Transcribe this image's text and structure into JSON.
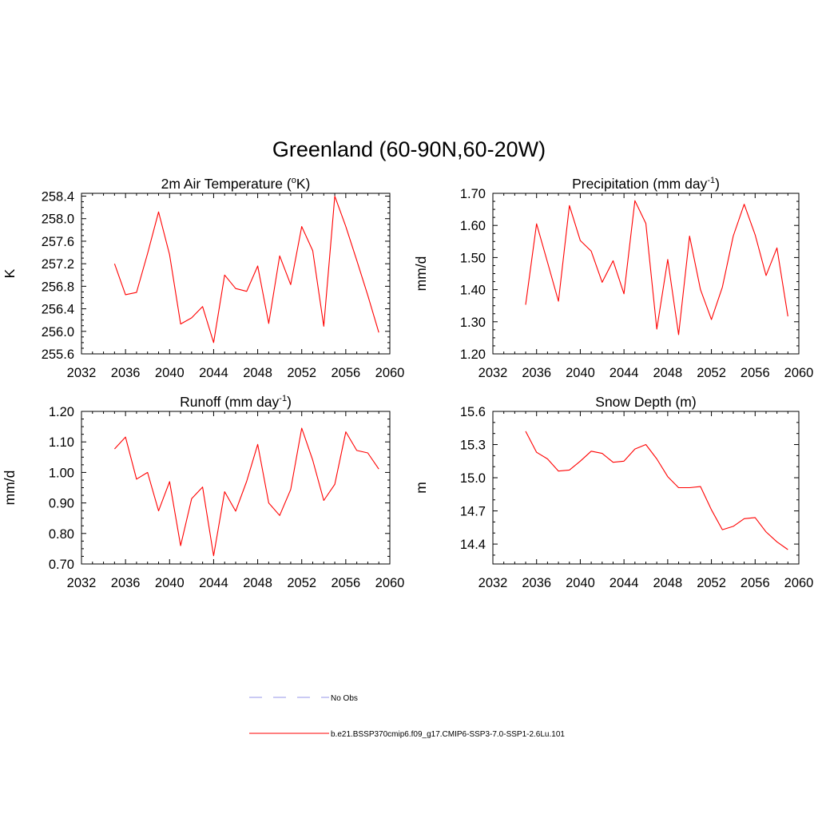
{
  "figure": {
    "title": "Greenland (60-90N,60-20W)"
  },
  "legend": {
    "entries": [
      {
        "label": "No Obs",
        "style": "dashed",
        "color": "#aaaaee"
      },
      {
        "label": "b.e21.BSSP370cmip6.f09_g17.CMIP6-SSP3-7.0-SSP1-2.6Lu.101",
        "style": "solid",
        "color": "#ff0000"
      }
    ]
  },
  "chart_data": [
    {
      "type": "line",
      "title": "2m Air Temperature (°K)",
      "title_base": "2m Air Temperature (",
      "title_sup": "o",
      "title_tail": "K)",
      "ylabel": "K",
      "xlim": [
        2032,
        2060
      ],
      "ylim": [
        255.6,
        258.45
      ],
      "xticks": [
        2032,
        2036,
        2040,
        2044,
        2048,
        2052,
        2056,
        2060
      ],
      "yticks": [
        255.6,
        256.0,
        256.4,
        256.8,
        257.2,
        257.6,
        258.0,
        258.4
      ],
      "ytick_labels": [
        "255.6",
        "256.0",
        "256.4",
        "256.8",
        "257.2",
        "257.6",
        "258.0",
        "258.4"
      ],
      "series": [
        {
          "color": "#ff0000",
          "x": [
            2035,
            2036,
            2037,
            2038,
            2039,
            2040,
            2041,
            2042,
            2043,
            2044,
            2045,
            2046,
            2047,
            2048,
            2049,
            2050,
            2051,
            2052,
            2053,
            2054,
            2055,
            2056,
            2057,
            2058,
            2059
          ],
          "y": [
            257.2,
            256.65,
            256.69,
            257.38,
            258.12,
            257.36,
            256.13,
            256.24,
            256.44,
            255.8,
            257.0,
            256.76,
            256.71,
            257.16,
            256.14,
            257.34,
            256.83,
            257.86,
            257.43,
            256.09,
            258.4,
            257.86,
            257.26,
            256.64,
            255.98
          ]
        }
      ]
    },
    {
      "type": "line",
      "title": "Precipitation (mm day-1)",
      "title_base": "Precipitation (mm day",
      "title_sup": "-1",
      "title_tail": ")",
      "ylabel": "mm/d",
      "xlim": [
        2032,
        2060
      ],
      "ylim": [
        1.2,
        1.7
      ],
      "xticks": [
        2032,
        2036,
        2040,
        2044,
        2048,
        2052,
        2056,
        2060
      ],
      "yticks": [
        1.2,
        1.3,
        1.4,
        1.5,
        1.6,
        1.7
      ],
      "ytick_labels": [
        "1.20",
        "1.30",
        "1.40",
        "1.50",
        "1.60",
        "1.70"
      ],
      "series": [
        {
          "color": "#ff0000",
          "x": [
            2035,
            2036,
            2037,
            2038,
            2039,
            2040,
            2041,
            2042,
            2043,
            2044,
            2045,
            2046,
            2047,
            2048,
            2049,
            2050,
            2051,
            2052,
            2053,
            2054,
            2055,
            2056,
            2057,
            2058,
            2059
          ],
          "y": [
            1.353,
            1.605,
            1.485,
            1.364,
            1.662,
            1.553,
            1.52,
            1.423,
            1.49,
            1.387,
            1.677,
            1.606,
            1.277,
            1.494,
            1.26,
            1.567,
            1.4,
            1.307,
            1.408,
            1.567,
            1.666,
            1.571,
            1.444,
            1.53,
            1.317
          ]
        }
      ]
    },
    {
      "type": "line",
      "title": "Runoff (mm day-1)",
      "title_base": "Runoff (mm day",
      "title_sup": "-1",
      "title_tail": ")",
      "ylabel": "mm/d",
      "xlim": [
        2032,
        2060
      ],
      "ylim": [
        0.7,
        1.2
      ],
      "xticks": [
        2032,
        2036,
        2040,
        2044,
        2048,
        2052,
        2056,
        2060
      ],
      "yticks": [
        0.7,
        0.8,
        0.9,
        1.0,
        1.1,
        1.2
      ],
      "ytick_labels": [
        "0.70",
        "0.80",
        "0.90",
        "1.00",
        "1.10",
        "1.20"
      ],
      "series": [
        {
          "color": "#ff0000",
          "x": [
            2035,
            2036,
            2037,
            2038,
            2039,
            2040,
            2041,
            2042,
            2043,
            2044,
            2045,
            2046,
            2047,
            2048,
            2049,
            2050,
            2051,
            2052,
            2053,
            2054,
            2055,
            2056,
            2057,
            2058,
            2059
          ],
          "y": [
            1.077,
            1.116,
            0.978,
            1.0,
            0.874,
            0.97,
            0.76,
            0.914,
            0.952,
            0.727,
            0.937,
            0.873,
            0.971,
            1.092,
            0.9,
            0.859,
            0.944,
            1.145,
            1.04,
            0.908,
            0.961,
            1.133,
            1.072,
            1.064,
            1.011
          ]
        }
      ]
    },
    {
      "type": "line",
      "title": "Snow Depth (m)",
      "title_base": "Snow Depth (m)",
      "title_sup": "",
      "title_tail": "",
      "ylabel": "m",
      "xlim": [
        2032,
        2060
      ],
      "ylim": [
        14.22,
        15.6
      ],
      "xticks": [
        2032,
        2036,
        2040,
        2044,
        2048,
        2052,
        2056,
        2060
      ],
      "yticks": [
        14.4,
        14.7,
        15.0,
        15.3,
        15.6
      ],
      "ytick_labels": [
        "14.4",
        "14.7",
        "15.0",
        "15.3",
        "15.6"
      ],
      "series": [
        {
          "color": "#ff0000",
          "x": [
            2035,
            2036,
            2037,
            2038,
            2039,
            2040,
            2041,
            2042,
            2043,
            2044,
            2045,
            2046,
            2047,
            2048,
            2049,
            2050,
            2051,
            2052,
            2053,
            2054,
            2055,
            2056,
            2057,
            2058,
            2059
          ],
          "y": [
            15.42,
            15.23,
            15.17,
            15.06,
            15.07,
            15.15,
            15.24,
            15.22,
            15.14,
            15.15,
            15.26,
            15.3,
            15.17,
            15.01,
            14.91,
            14.91,
            14.92,
            14.71,
            14.53,
            14.56,
            14.63,
            14.64,
            14.51,
            14.42,
            14.35
          ]
        }
      ]
    }
  ]
}
